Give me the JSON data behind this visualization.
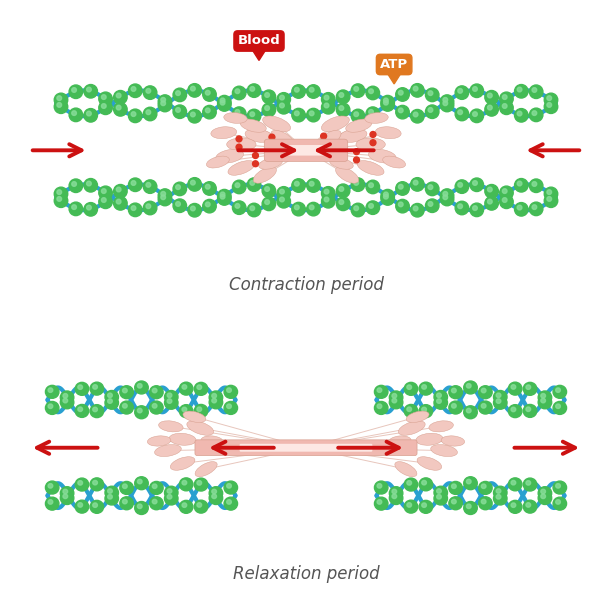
{
  "bg_color": "#ffffff",
  "title1": "Contraction period",
  "title2": "Relaxation period",
  "title_color": "#555555",
  "title_fontsize": 12,
  "blood_label": "Blood",
  "atp_label": "ATP",
  "blood_color": "#cc1111",
  "atp_color": "#e07820",
  "arrow_color": "#cc1111",
  "actin_blue": "#29a0d0",
  "actin_green": "#44bb55",
  "actin_green_light": "#88dd99",
  "myosin_color": "#f2c8c0",
  "myosin_edge": "#d8a090",
  "myosin_rod_color": "#f0b8b0",
  "red_link": "#dd3322"
}
